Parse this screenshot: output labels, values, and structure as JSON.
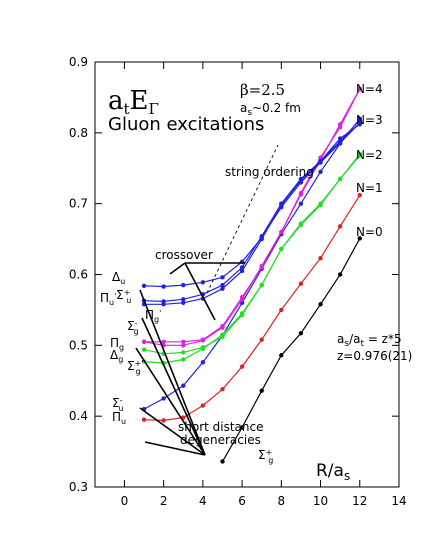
{
  "chart_data": {
    "type": "line",
    "title": "a_tE_Γ",
    "subtitle": "Gluon excitations",
    "xlabel": "R/a_s",
    "ylabel": "",
    "xlim": [
      -1.5,
      14
    ],
    "ylim": [
      0.3,
      0.9
    ],
    "xticks": [
      "0",
      "2",
      "4",
      "6",
      "8",
      "10",
      "12",
      "14"
    ],
    "yticks": [
      "0.3",
      "0.4",
      "0.5",
      "0.6",
      "0.7",
      "0.8",
      "0.9"
    ],
    "grid": false,
    "legend": "none",
    "texts": {
      "beta": "β=2.5",
      "as": "a_s~0.2 fm",
      "ratio": "a_s/a_t = z*5",
      "z": "z=0.976(21)",
      "string_ordering": "string ordering",
      "crossover": "crossover",
      "short_distance": "short distance",
      "degeneracies": "degeneracies",
      "N0": "N=0",
      "N1": "N=1",
      "N2": "N=2",
      "N3": "N=3",
      "N4": "N=4"
    },
    "series": [
      {
        "color": "#000000",
        "x": [
          5,
          6,
          7,
          8,
          9,
          10,
          11,
          12
        ],
        "y": [
          0.336,
          0.384,
          0.436,
          0.486,
          0.517,
          0.558,
          0.6,
          0.651
        ]
      },
      {
        "color": "#dd2222",
        "x": [
          1,
          2,
          3,
          4,
          5,
          6,
          7,
          8,
          9,
          10,
          11,
          12
        ],
        "y": [
          0.395,
          0.394,
          0.398,
          0.415,
          0.438,
          0.47,
          0.508,
          0.55,
          0.587,
          0.623,
          0.668,
          0.712
        ]
      },
      {
        "color": "#2222dd",
        "x": [
          1,
          2,
          3,
          4,
          5,
          6,
          7,
          8,
          9,
          10,
          11,
          12
        ],
        "y": [
          0.41,
          0.425,
          0.443,
          0.476,
          0.514,
          0.56,
          0.608,
          0.657,
          0.7,
          0.745,
          0.785,
          0.82
        ]
      },
      {
        "color": "#22dd22",
        "x": [
          1,
          2,
          3,
          4,
          5,
          6,
          7,
          8,
          9,
          10,
          11,
          12
        ],
        "y": [
          0.477,
          0.475,
          0.48,
          0.495,
          0.515,
          0.545,
          0.585,
          0.636,
          0.67,
          0.698,
          0.735,
          0.77
        ]
      },
      {
        "color": "#22dd22",
        "x": [
          1,
          2,
          3,
          4,
          5,
          6,
          7,
          8,
          9,
          10,
          11,
          12
        ],
        "y": [
          0.494,
          0.488,
          0.49,
          0.497,
          0.512,
          0.543,
          0.585,
          0.636,
          0.672,
          0.7,
          0.735,
          0.768
        ]
      },
      {
        "color": "#dd22dd",
        "x": [
          1,
          2,
          3,
          4,
          5,
          6,
          7,
          8,
          9,
          10,
          11,
          12
        ],
        "y": [
          0.505,
          0.5,
          0.5,
          0.507,
          0.525,
          0.565,
          0.612,
          0.66,
          0.715,
          0.765,
          0.808,
          0.862
        ]
      },
      {
        "color": "#dd22dd",
        "x": [
          1,
          2,
          3,
          4,
          5,
          6,
          7,
          8,
          9,
          10,
          11,
          12
        ],
        "y": [
          0.505,
          0.505,
          0.505,
          0.508,
          0.527,
          0.568,
          0.61,
          0.66,
          0.713,
          0.762,
          0.812,
          0.862
        ]
      },
      {
        "color": "#2222dd",
        "x": [
          1,
          2,
          3,
          4,
          5,
          6,
          7,
          8,
          9,
          10,
          11,
          12
        ],
        "y": [
          0.563,
          0.562,
          0.565,
          0.572,
          0.585,
          0.61,
          0.654,
          0.7,
          0.735,
          0.76,
          0.788,
          0.818
        ]
      },
      {
        "color": "#2222dd",
        "x": [
          1,
          2,
          3,
          4,
          5,
          6,
          7,
          8,
          9,
          10,
          11,
          12
        ],
        "y": [
          0.584,
          0.583,
          0.585,
          0.589,
          0.596,
          0.618,
          0.652,
          0.695,
          0.73,
          0.758,
          0.786,
          0.814
        ]
      },
      {
        "color": "#2222dd",
        "x": [
          1,
          2,
          3,
          4,
          5,
          6,
          7,
          8,
          9,
          10,
          11,
          12
        ],
        "y": [
          0.558,
          0.558,
          0.56,
          0.566,
          0.58,
          0.605,
          0.65,
          0.698,
          0.733,
          0.76,
          0.792,
          0.812
        ]
      }
    ]
  }
}
